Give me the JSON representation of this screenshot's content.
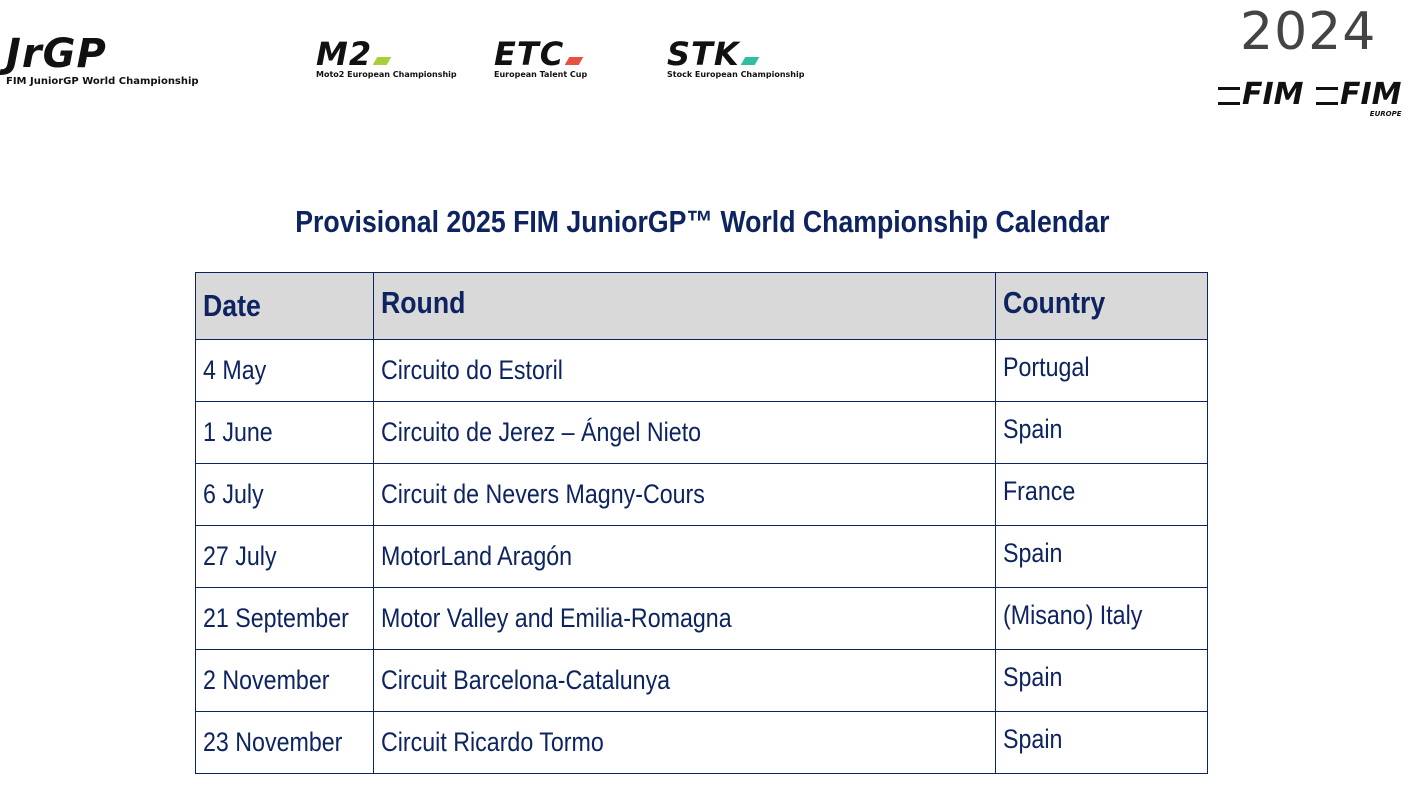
{
  "logos": {
    "jrgp": {
      "mark": "JrGP",
      "subtitle": "FIM JuniorGP World Championship"
    },
    "m2": {
      "mark": "M2",
      "subtitle": "Moto2 European Championship",
      "accent": "#a6cf3a"
    },
    "etc": {
      "mark": "ETC",
      "subtitle": "European Talent Cup",
      "accent": "#e8513f"
    },
    "stk": {
      "mark": "STK",
      "subtitle": "Stock European Championship",
      "accent": "#2fbf9f"
    },
    "year": "2024",
    "fim": "FIM",
    "fim_europe": {
      "mark": "FIM",
      "subtitle": "EUROPE"
    }
  },
  "title": "Provisional 2025 FIM JuniorGP™ World Championship Calendar",
  "table": {
    "headers": [
      "Date",
      "Round",
      "Country"
    ],
    "rows": [
      [
        "4 May",
        "Circuito do Estoril",
        "Portugal"
      ],
      [
        "1 June",
        "Circuito de Jerez – Ángel Nieto",
        "Spain"
      ],
      [
        "6 July",
        "Circuit de Nevers Magny-Cours",
        "France"
      ],
      [
        "27 July",
        "MotorLand Aragón",
        "Spain"
      ],
      [
        "21 September",
        "Motor Valley and Emilia-Romagna",
        "(Misano) Italy"
      ],
      [
        "2 November",
        "Circuit Barcelona-Catalunya",
        "Spain"
      ],
      [
        "23 November",
        "Circuit Ricardo Tormo",
        "Spain"
      ]
    ]
  }
}
